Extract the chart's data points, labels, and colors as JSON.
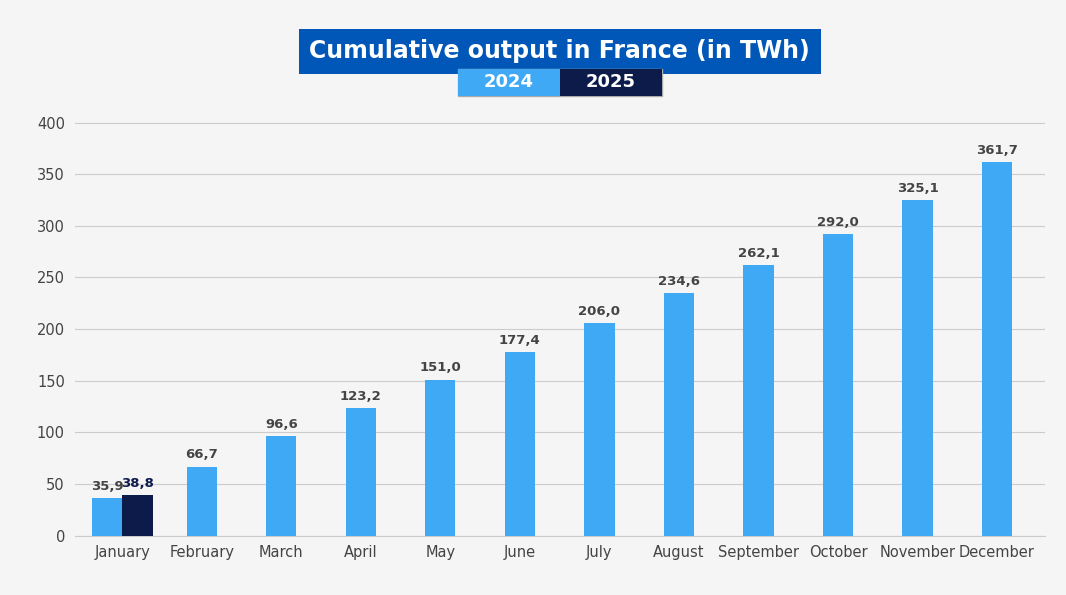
{
  "title": "Cumulative output in France (in TWh)",
  "title_bg_color": "#0057b8",
  "title_text_color": "#ffffff",
  "background_color": "#f5f5f5",
  "months": [
    "January",
    "February",
    "March",
    "April",
    "May",
    "June",
    "July",
    "August",
    "September",
    "October",
    "November",
    "December"
  ],
  "values_2024": [
    35.9,
    66.7,
    96.6,
    123.2,
    151.0,
    177.4,
    206.0,
    234.6,
    262.1,
    292.0,
    325.1,
    361.7
  ],
  "values_2025": [
    38.8,
    null,
    null,
    null,
    null,
    null,
    null,
    null,
    null,
    null,
    null,
    null
  ],
  "bar_color_2024": "#3fa9f5",
  "bar_color_2025": "#0d1b4b",
  "label_color_2024": "#444444",
  "label_color_2025": "#0d1b4b",
  "ylim": [
    0,
    415
  ],
  "yticks": [
    0,
    50,
    100,
    150,
    200,
    250,
    300,
    350,
    400
  ],
  "legend_2024_bg": "#3fa9f5",
  "legend_2025_bg": "#0d1b4b",
  "legend_text_color": "#ffffff",
  "legend_border_color": "#aaaaaa",
  "grid_color": "#cccccc",
  "tick_label_color": "#444444",
  "bar_width": 0.38
}
